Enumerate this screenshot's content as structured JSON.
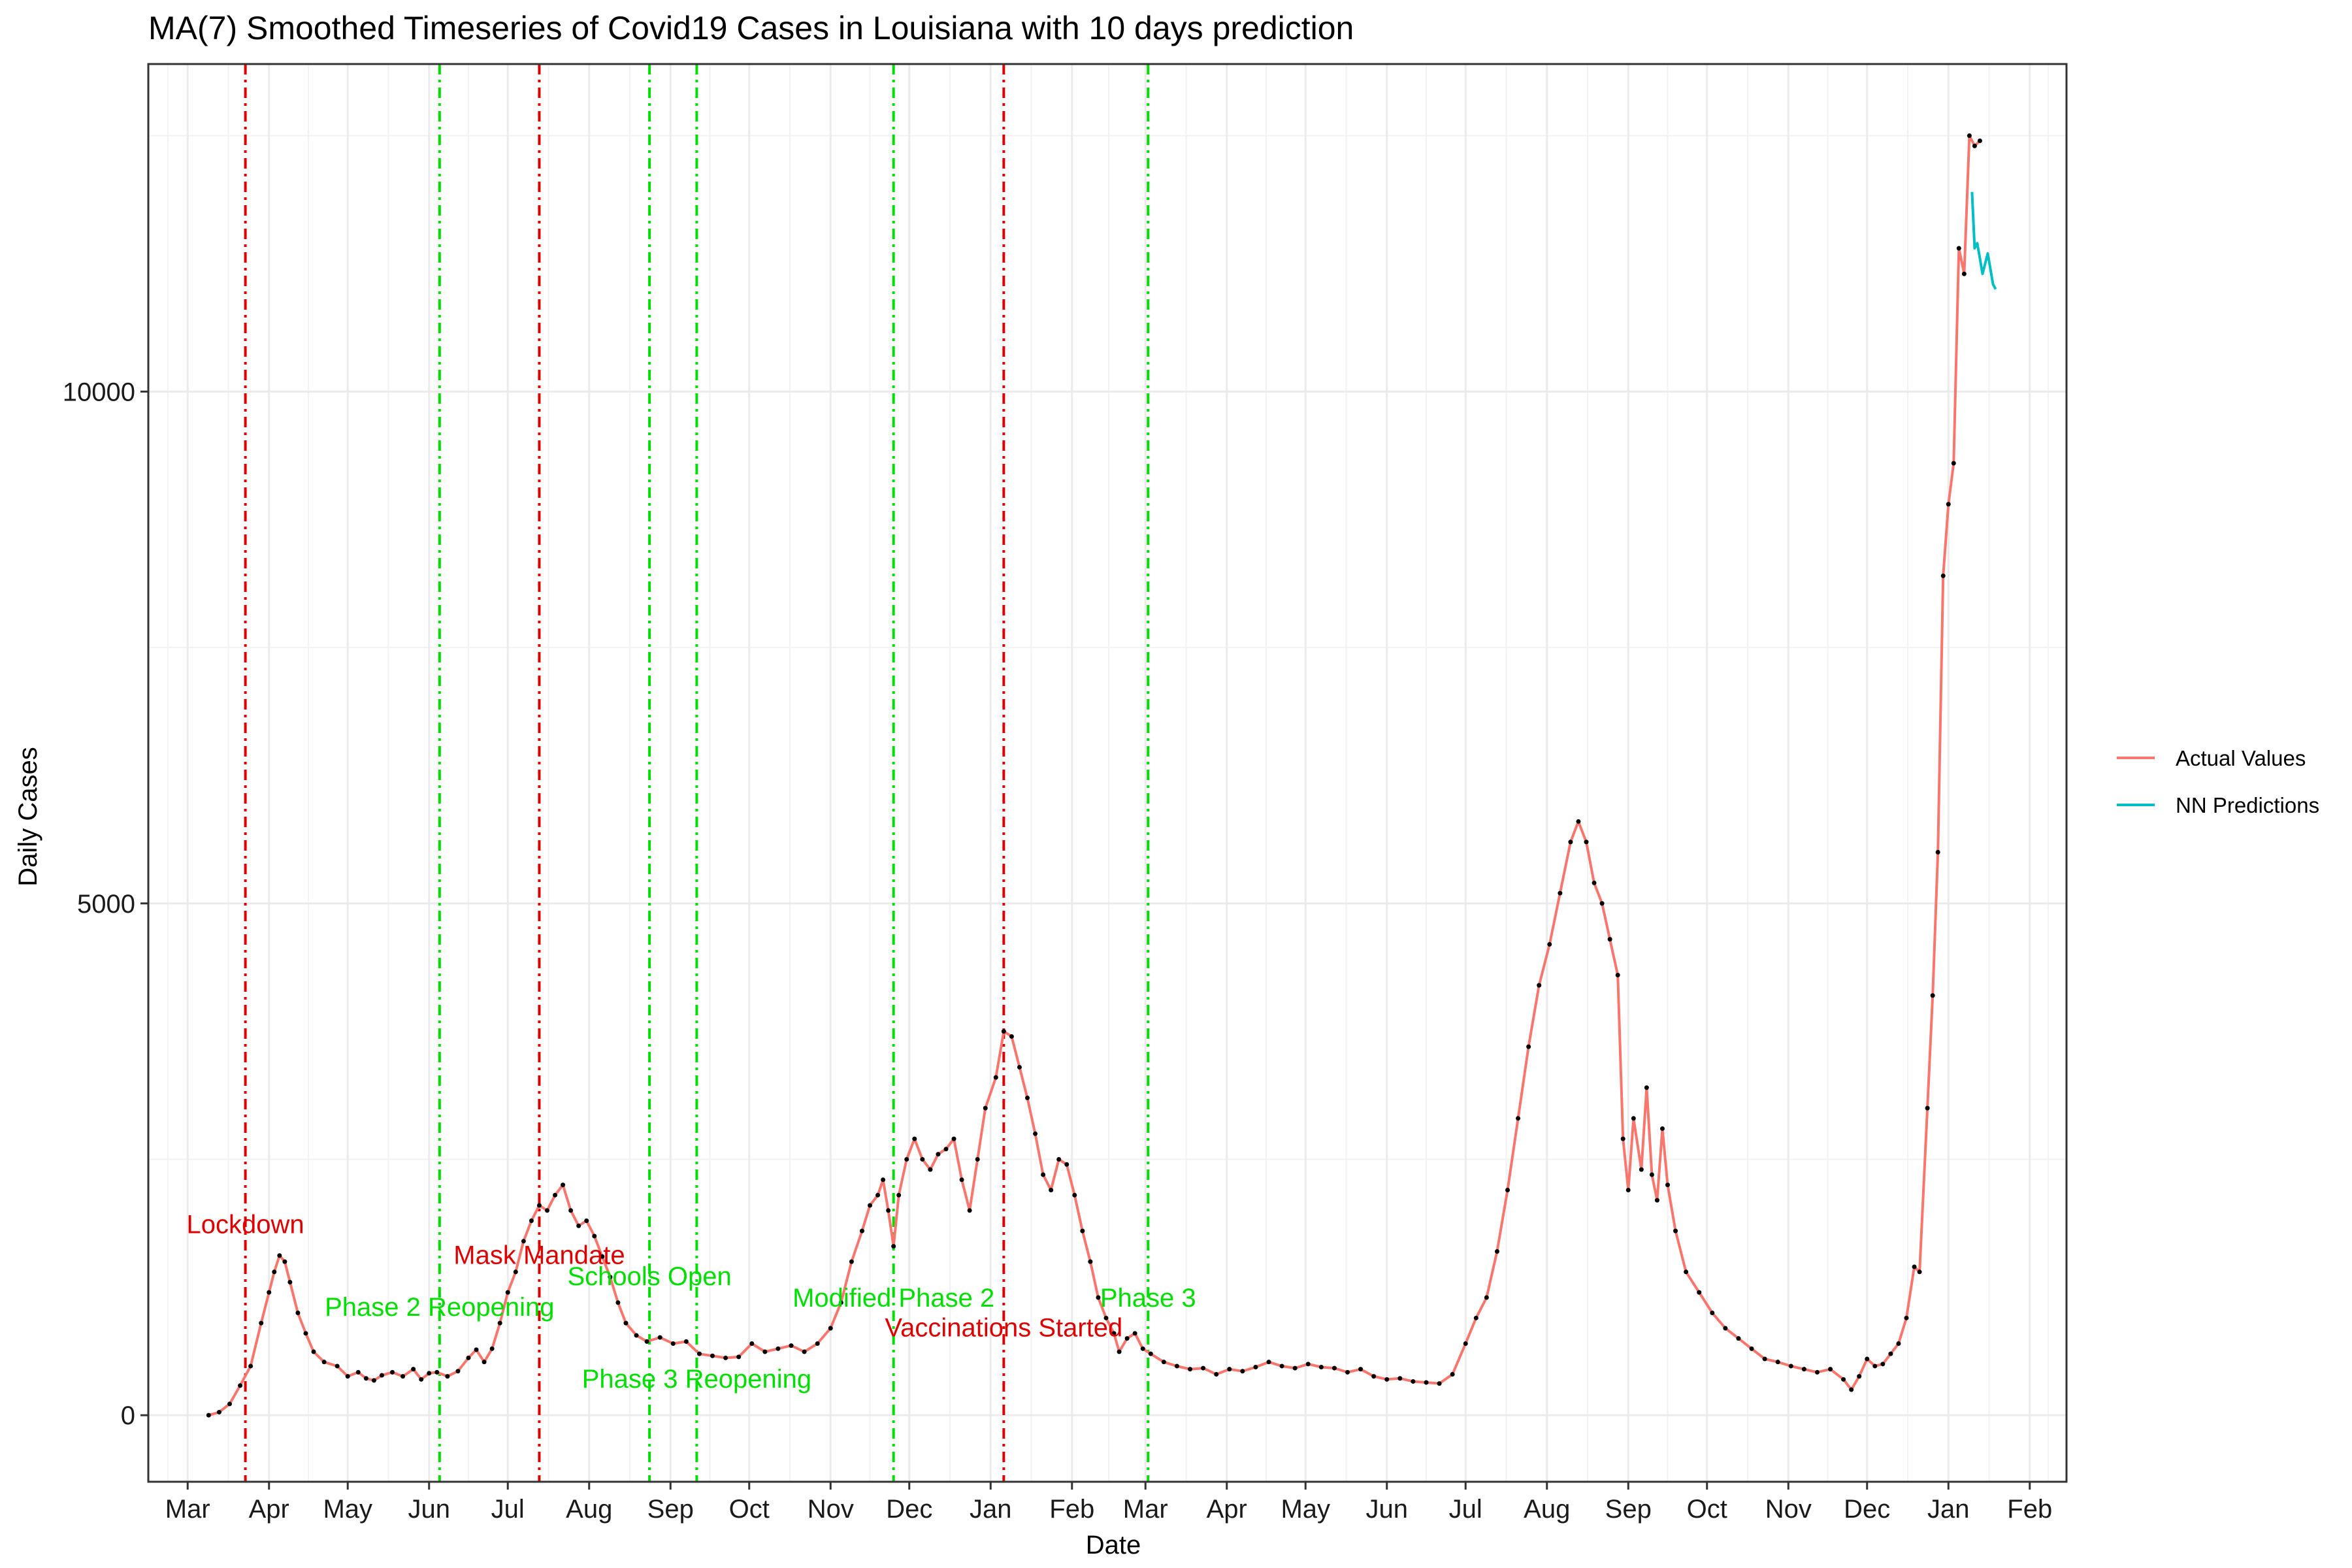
{
  "chart_data": {
    "type": "line",
    "title": "MA(7) Smoothed Timeseries of Covid19 Cases in Louisiana with 10 days prediction",
    "xlabel": "Date",
    "ylabel": "Daily Cases",
    "x_range": [
      "2020-02-15",
      "2022-02-15"
    ],
    "ylim": [
      -650,
      13200
    ],
    "grid": true,
    "legend_position": "right",
    "x_ticks": [
      {
        "date": "2020-03-01",
        "label": "Mar"
      },
      {
        "date": "2020-04-01",
        "label": "Apr"
      },
      {
        "date": "2020-05-01",
        "label": "May"
      },
      {
        "date": "2020-06-01",
        "label": "Jun"
      },
      {
        "date": "2020-07-01",
        "label": "Jul"
      },
      {
        "date": "2020-08-01",
        "label": "Aug"
      },
      {
        "date": "2020-09-01",
        "label": "Sep"
      },
      {
        "date": "2020-10-01",
        "label": "Oct"
      },
      {
        "date": "2020-11-01",
        "label": "Nov"
      },
      {
        "date": "2020-12-01",
        "label": "Dec"
      },
      {
        "date": "2021-01-01",
        "label": "Jan"
      },
      {
        "date": "2021-02-01",
        "label": "Feb"
      },
      {
        "date": "2021-03-01",
        "label": "Mar"
      },
      {
        "date": "2021-04-01",
        "label": "Apr"
      },
      {
        "date": "2021-05-01",
        "label": "May"
      },
      {
        "date": "2021-06-01",
        "label": "Jun"
      },
      {
        "date": "2021-07-01",
        "label": "Jul"
      },
      {
        "date": "2021-08-01",
        "label": "Aug"
      },
      {
        "date": "2021-09-01",
        "label": "Sep"
      },
      {
        "date": "2021-10-01",
        "label": "Oct"
      },
      {
        "date": "2021-11-01",
        "label": "Nov"
      },
      {
        "date": "2021-12-01",
        "label": "Dec"
      },
      {
        "date": "2022-01-01",
        "label": "Jan"
      },
      {
        "date": "2022-02-01",
        "label": "Feb"
      }
    ],
    "y_ticks": [
      {
        "value": 0,
        "label": "0"
      },
      {
        "value": 5000,
        "label": "5000"
      },
      {
        "value": 10000,
        "label": "10000"
      }
    ],
    "series": [
      {
        "name": "Actual Values",
        "color": "#F8766D",
        "points": [
          [
            "2020-03-09",
            0
          ],
          [
            "2020-03-13",
            30
          ],
          [
            "2020-03-17",
            110
          ],
          [
            "2020-03-21",
            290
          ],
          [
            "2020-03-25",
            480
          ],
          [
            "2020-03-29",
            900
          ],
          [
            "2020-04-01",
            1200
          ],
          [
            "2020-04-03",
            1400
          ],
          [
            "2020-04-05",
            1560
          ],
          [
            "2020-04-07",
            1500
          ],
          [
            "2020-04-09",
            1300
          ],
          [
            "2020-04-12",
            1000
          ],
          [
            "2020-04-15",
            800
          ],
          [
            "2020-04-18",
            620
          ],
          [
            "2020-04-22",
            520
          ],
          [
            "2020-04-27",
            480
          ],
          [
            "2020-05-01",
            380
          ],
          [
            "2020-05-05",
            420
          ],
          [
            "2020-05-08",
            360
          ],
          [
            "2020-05-11",
            340
          ],
          [
            "2020-05-14",
            390
          ],
          [
            "2020-05-18",
            420
          ],
          [
            "2020-05-22",
            380
          ],
          [
            "2020-05-26",
            450
          ],
          [
            "2020-05-29",
            350
          ],
          [
            "2020-06-01",
            410
          ],
          [
            "2020-06-04",
            420
          ],
          [
            "2020-06-08",
            380
          ],
          [
            "2020-06-12",
            430
          ],
          [
            "2020-06-16",
            560
          ],
          [
            "2020-06-19",
            640
          ],
          [
            "2020-06-22",
            520
          ],
          [
            "2020-06-25",
            650
          ],
          [
            "2020-06-28",
            900
          ],
          [
            "2020-07-01",
            1200
          ],
          [
            "2020-07-04",
            1400
          ],
          [
            "2020-07-07",
            1700
          ],
          [
            "2020-07-10",
            1900
          ],
          [
            "2020-07-13",
            2050
          ],
          [
            "2020-07-16",
            2000
          ],
          [
            "2020-07-19",
            2150
          ],
          [
            "2020-07-22",
            2250
          ],
          [
            "2020-07-25",
            2000
          ],
          [
            "2020-07-28",
            1850
          ],
          [
            "2020-07-31",
            1900
          ],
          [
            "2020-08-03",
            1750
          ],
          [
            "2020-08-06",
            1550
          ],
          [
            "2020-08-09",
            1350
          ],
          [
            "2020-08-12",
            1100
          ],
          [
            "2020-08-15",
            900
          ],
          [
            "2020-08-19",
            780
          ],
          [
            "2020-08-23",
            720
          ],
          [
            "2020-08-28",
            760
          ],
          [
            "2020-09-02",
            700
          ],
          [
            "2020-09-07",
            720
          ],
          [
            "2020-09-12",
            600
          ],
          [
            "2020-09-17",
            580
          ],
          [
            "2020-09-22",
            560
          ],
          [
            "2020-09-27",
            570
          ],
          [
            "2020-10-02",
            700
          ],
          [
            "2020-10-07",
            620
          ],
          [
            "2020-10-12",
            650
          ],
          [
            "2020-10-17",
            680
          ],
          [
            "2020-10-22",
            620
          ],
          [
            "2020-10-27",
            700
          ],
          [
            "2020-11-01",
            850
          ],
          [
            "2020-11-05",
            1100
          ],
          [
            "2020-11-09",
            1500
          ],
          [
            "2020-11-13",
            1800
          ],
          [
            "2020-11-16",
            2050
          ],
          [
            "2020-11-19",
            2150
          ],
          [
            "2020-11-21",
            2300
          ],
          [
            "2020-11-23",
            2000
          ],
          [
            "2020-11-25",
            1650
          ],
          [
            "2020-11-27",
            2150
          ],
          [
            "2020-11-30",
            2500
          ],
          [
            "2020-12-03",
            2700
          ],
          [
            "2020-12-06",
            2500
          ],
          [
            "2020-12-09",
            2400
          ],
          [
            "2020-12-12",
            2550
          ],
          [
            "2020-12-15",
            2600
          ],
          [
            "2020-12-18",
            2700
          ],
          [
            "2020-12-21",
            2300
          ],
          [
            "2020-12-24",
            2000
          ],
          [
            "2020-12-27",
            2500
          ],
          [
            "2020-12-30",
            3000
          ],
          [
            "2021-01-03",
            3300
          ],
          [
            "2021-01-06",
            3750
          ],
          [
            "2021-01-09",
            3700
          ],
          [
            "2021-01-12",
            3400
          ],
          [
            "2021-01-15",
            3100
          ],
          [
            "2021-01-18",
            2750
          ],
          [
            "2021-01-21",
            2350
          ],
          [
            "2021-01-24",
            2200
          ],
          [
            "2021-01-27",
            2500
          ],
          [
            "2021-01-30",
            2450
          ],
          [
            "2021-02-02",
            2150
          ],
          [
            "2021-02-05",
            1800
          ],
          [
            "2021-02-08",
            1500
          ],
          [
            "2021-02-11",
            1150
          ],
          [
            "2021-02-14",
            950
          ],
          [
            "2021-02-17",
            800
          ],
          [
            "2021-02-19",
            620
          ],
          [
            "2021-02-22",
            750
          ],
          [
            "2021-02-25",
            800
          ],
          [
            "2021-02-28",
            650
          ],
          [
            "2021-03-03",
            600
          ],
          [
            "2021-03-08",
            520
          ],
          [
            "2021-03-13",
            480
          ],
          [
            "2021-03-18",
            450
          ],
          [
            "2021-03-23",
            460
          ],
          [
            "2021-03-28",
            400
          ],
          [
            "2021-04-02",
            450
          ],
          [
            "2021-04-07",
            430
          ],
          [
            "2021-04-12",
            470
          ],
          [
            "2021-04-17",
            520
          ],
          [
            "2021-04-22",
            480
          ],
          [
            "2021-04-27",
            460
          ],
          [
            "2021-05-02",
            500
          ],
          [
            "2021-05-07",
            470
          ],
          [
            "2021-05-12",
            460
          ],
          [
            "2021-05-17",
            420
          ],
          [
            "2021-05-22",
            450
          ],
          [
            "2021-05-27",
            380
          ],
          [
            "2021-06-01",
            350
          ],
          [
            "2021-06-06",
            360
          ],
          [
            "2021-06-11",
            330
          ],
          [
            "2021-06-16",
            320
          ],
          [
            "2021-06-21",
            310
          ],
          [
            "2021-06-26",
            400
          ],
          [
            "2021-07-01",
            700
          ],
          [
            "2021-07-05",
            950
          ],
          [
            "2021-07-09",
            1150
          ],
          [
            "2021-07-13",
            1600
          ],
          [
            "2021-07-17",
            2200
          ],
          [
            "2021-07-21",
            2900
          ],
          [
            "2021-07-25",
            3600
          ],
          [
            "2021-07-29",
            4200
          ],
          [
            "2021-08-02",
            4600
          ],
          [
            "2021-08-06",
            5100
          ],
          [
            "2021-08-10",
            5600
          ],
          [
            "2021-08-13",
            5800
          ],
          [
            "2021-08-16",
            5600
          ],
          [
            "2021-08-19",
            5200
          ],
          [
            "2021-08-22",
            5000
          ],
          [
            "2021-08-25",
            4650
          ],
          [
            "2021-08-28",
            4300
          ],
          [
            "2021-08-30",
            2700
          ],
          [
            "2021-09-01",
            2200
          ],
          [
            "2021-09-03",
            2900
          ],
          [
            "2021-09-06",
            2400
          ],
          [
            "2021-09-08",
            3200
          ],
          [
            "2021-09-10",
            2350
          ],
          [
            "2021-09-12",
            2100
          ],
          [
            "2021-09-14",
            2800
          ],
          [
            "2021-09-16",
            2250
          ],
          [
            "2021-09-19",
            1800
          ],
          [
            "2021-09-23",
            1400
          ],
          [
            "2021-09-28",
            1200
          ],
          [
            "2021-10-03",
            1000
          ],
          [
            "2021-10-08",
            850
          ],
          [
            "2021-10-13",
            750
          ],
          [
            "2021-10-18",
            650
          ],
          [
            "2021-10-23",
            550
          ],
          [
            "2021-10-28",
            520
          ],
          [
            "2021-11-02",
            480
          ],
          [
            "2021-11-07",
            450
          ],
          [
            "2021-11-12",
            420
          ],
          [
            "2021-11-17",
            450
          ],
          [
            "2021-11-22",
            350
          ],
          [
            "2021-11-25",
            250
          ],
          [
            "2021-11-28",
            380
          ],
          [
            "2021-12-01",
            550
          ],
          [
            "2021-12-04",
            480
          ],
          [
            "2021-12-07",
            500
          ],
          [
            "2021-12-10",
            600
          ],
          [
            "2021-12-13",
            700
          ],
          [
            "2021-12-16",
            950
          ],
          [
            "2021-12-19",
            1450
          ],
          [
            "2021-12-21",
            1400
          ],
          [
            "2021-12-24",
            3000
          ],
          [
            "2021-12-26",
            4100
          ],
          [
            "2021-12-28",
            5500
          ],
          [
            "2021-12-30",
            8200
          ],
          [
            "2022-01-01",
            8900
          ],
          [
            "2022-01-03",
            9300
          ],
          [
            "2022-01-05",
            11400
          ],
          [
            "2022-01-07",
            11150
          ],
          [
            "2022-01-09",
            12500
          ],
          [
            "2022-01-11",
            12400
          ],
          [
            "2022-01-13",
            12450
          ]
        ]
      },
      {
        "name": "NN Predictions",
        "color": "#00BFC4",
        "points": [
          [
            "2022-01-10",
            11950
          ],
          [
            "2022-01-11",
            11400
          ],
          [
            "2022-01-12",
            11450
          ],
          [
            "2022-01-13",
            11300
          ],
          [
            "2022-01-14",
            11150
          ],
          [
            "2022-01-15",
            11250
          ],
          [
            "2022-01-16",
            11350
          ],
          [
            "2022-01-17",
            11200
          ],
          [
            "2022-01-18",
            11050
          ],
          [
            "2022-01-19",
            11000
          ]
        ]
      }
    ],
    "events": [
      {
        "date": "2020-03-23",
        "label": "Lockdown",
        "color": "#DD0000",
        "label_value": 1780
      },
      {
        "date": "2020-06-05",
        "label": "Phase 2 Reopening",
        "color": "#00DD00",
        "label_value": 970
      },
      {
        "date": "2020-07-13",
        "label": "Mask Mandate",
        "color": "#DD0000",
        "label_value": 1480
      },
      {
        "date": "2020-08-24",
        "label": "Schools Open",
        "color": "#00DD00",
        "label_value": 1270
      },
      {
        "date": "2020-09-11",
        "label": "Phase 3 Reopening",
        "color": "#00DD00",
        "label_value": 270
      },
      {
        "date": "2020-11-25",
        "label": "Modified Phase 2",
        "color": "#00DD00",
        "label_value": 1060
      },
      {
        "date": "2021-01-06",
        "label": "Vaccinations Started",
        "color": "#DD0000",
        "label_value": 770
      },
      {
        "date": "2021-03-02",
        "label": "Phase 3",
        "color": "#00DD00",
        "label_value": 1060
      }
    ]
  }
}
